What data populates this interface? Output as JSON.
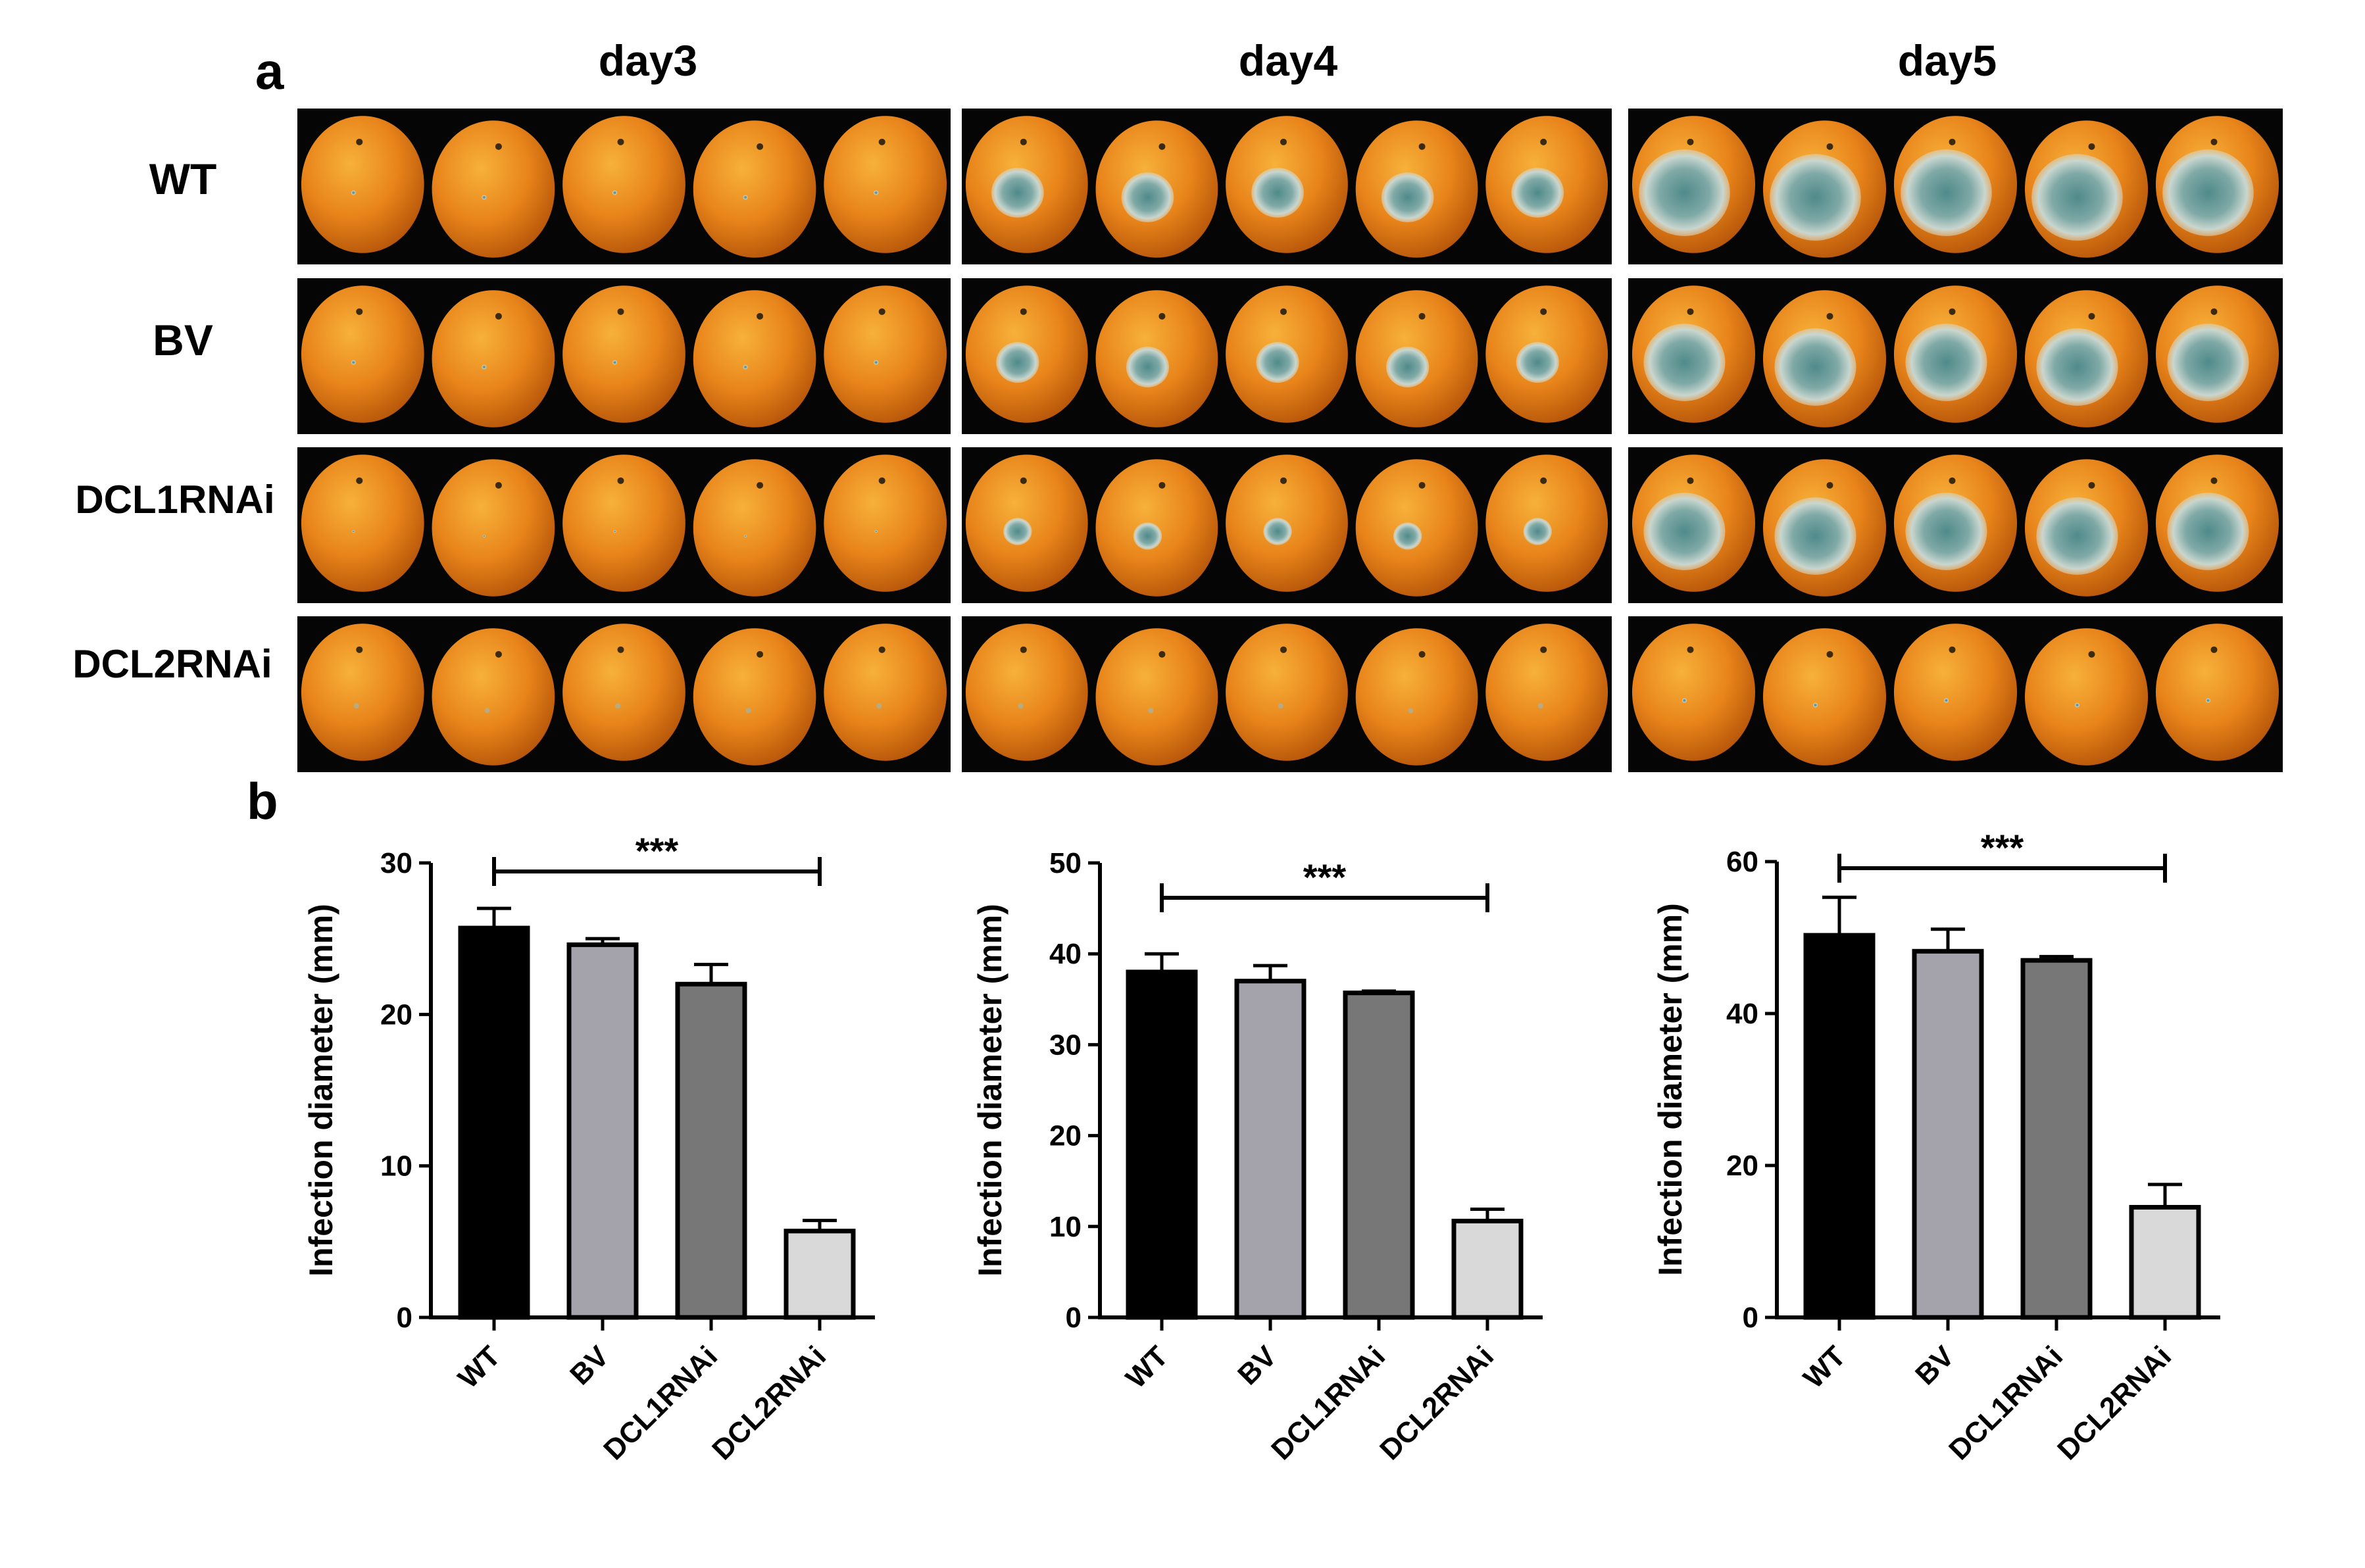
{
  "figure": {
    "panel_a_label": "a",
    "panel_b_label": "b",
    "days": [
      "day3",
      "day4",
      "day5"
    ],
    "rows": [
      "WT",
      "BV",
      "DCL1RNAi",
      "DCL2RNAi"
    ]
  },
  "photo_grid": {
    "description": "Citrus fruit infected with green mold over time",
    "fruits_per_cell": 5,
    "lesion_scale": [
      [
        0.05,
        0.55,
        0.95
      ],
      [
        0.05,
        0.45,
        0.85
      ],
      [
        0.03,
        0.3,
        0.85
      ],
      [
        0.0,
        0.0,
        0.05
      ]
    ]
  },
  "colors": {
    "WT": "#000000",
    "BV": "#a4a3ab",
    "DCL1RNAi": "#777777",
    "DCL2RNAi": "#d9d9d9",
    "photo_bg": "#050505",
    "orange": "#e8841a",
    "mold": "#6f9e9a"
  },
  "chart_data": [
    {
      "type": "bar",
      "title": "day3",
      "categories": [
        "WT",
        "BV",
        "DCL1RNAi",
        "DCL2RNAi"
      ],
      "values": [
        25.7,
        24.6,
        22.0,
        5.7
      ],
      "errors": [
        1.3,
        0.4,
        1.3,
        0.7
      ],
      "ylabel": "Infection diameter (mm)",
      "ylim": [
        0,
        30
      ],
      "yticks": [
        0,
        10,
        20,
        30
      ],
      "significance": "***",
      "significance_between": [
        "WT",
        "DCL2RNAi"
      ]
    },
    {
      "type": "bar",
      "title": "day4",
      "categories": [
        "WT",
        "BV",
        "DCL1RNAi",
        "DCL2RNAi"
      ],
      "values": [
        38.0,
        37.0,
        35.7,
        10.6
      ],
      "errors": [
        2.0,
        1.7,
        0.2,
        1.3
      ],
      "ylabel": "Infection diameter (mm)",
      "ylim": [
        0,
        50
      ],
      "yticks": [
        0,
        10,
        20,
        30,
        40,
        50
      ],
      "significance": "***",
      "significance_between": [
        "WT",
        "DCL2RNAi"
      ]
    },
    {
      "type": "bar",
      "title": "day5",
      "categories": [
        "WT",
        "BV",
        "DCL1RNAi",
        "DCL2RNAi"
      ],
      "values": [
        50.3,
        48.2,
        47.0,
        14.5
      ],
      "errors": [
        5.0,
        2.9,
        0.5,
        3.0
      ],
      "ylabel": "Infection diameter (mm)",
      "ylim": [
        0,
        60
      ],
      "yticks": [
        0,
        20,
        40,
        60
      ],
      "significance": "***",
      "significance_between": [
        "WT",
        "DCL2RNAi"
      ]
    }
  ]
}
